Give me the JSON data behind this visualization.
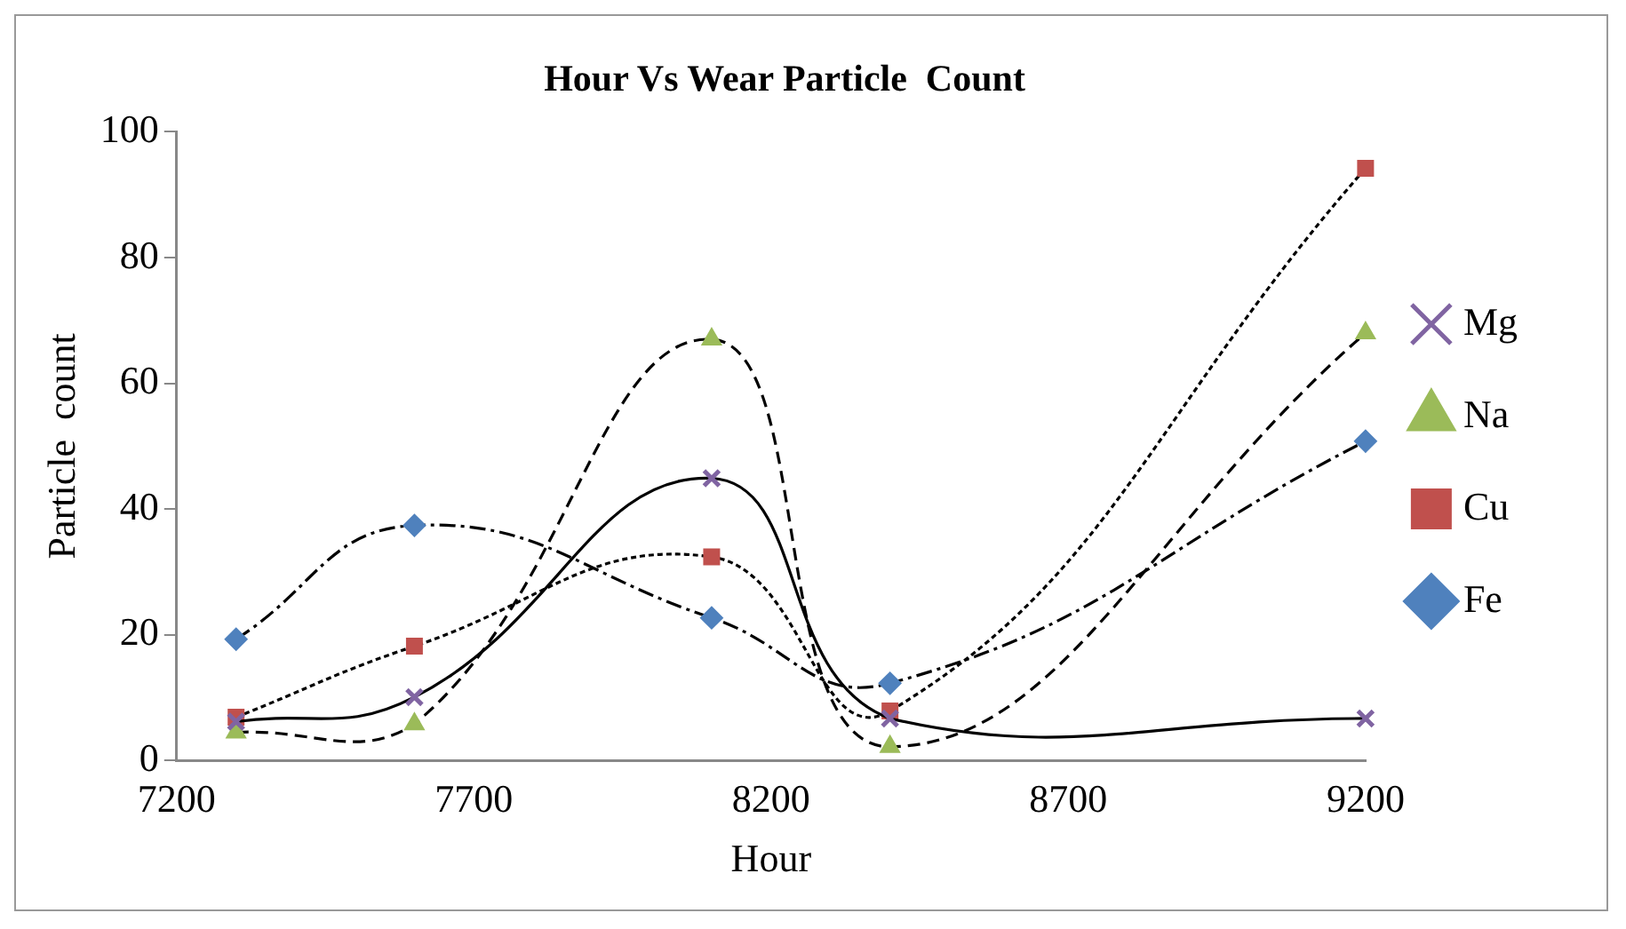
{
  "chart_data": {
    "type": "line",
    "title": "Hour Vs Wear Particle  Count",
    "xlabel": "Hour",
    "ylabel": "Particle  count",
    "x": [
      7300,
      7600,
      8100,
      8400,
      9200
    ],
    "series": [
      {
        "name": "Fe",
        "color": "#4f81bd",
        "marker": "diamond",
        "line_style": "dashdot",
        "values": [
          19.3,
          37.4,
          22.7,
          12.3,
          50.8
        ]
      },
      {
        "name": "Cu",
        "color": "#c0504d",
        "marker": "square",
        "line_style": "dotted",
        "values": [
          6.9,
          18.2,
          32.4,
          7.9,
          94.2
        ]
      },
      {
        "name": "Na",
        "color": "#9bbb59",
        "marker": "triangle",
        "line_style": "dashed",
        "values": [
          4.5,
          5.8,
          67,
          2.2,
          68
        ]
      },
      {
        "name": "Mg",
        "color": "#8064a2",
        "marker": "cross",
        "line_style": "solid",
        "values": [
          6.2,
          10.1,
          44.9,
          6.7,
          6.7
        ]
      }
    ],
    "xlim": [
      7200,
      9200
    ],
    "xticks": [
      7200,
      7700,
      8200,
      8700,
      9200
    ],
    "ylim": [
      0,
      100
    ],
    "yticks": [
      0,
      20,
      40,
      60,
      80,
      100
    ],
    "grid": false,
    "legend": "right"
  }
}
